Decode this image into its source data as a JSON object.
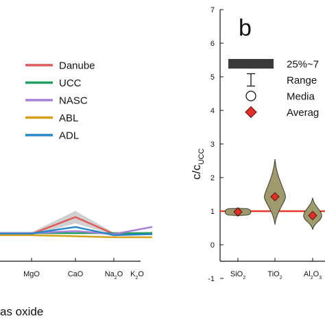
{
  "chart_data": [
    {
      "type": "line",
      "panel": "a",
      "categories": [
        "MgO",
        "CaO",
        "Na2O",
        "K2O"
      ],
      "category_labels": [
        {
          "base": "MgO",
          "sub": "",
          "tail": ""
        },
        {
          "base": "CaO",
          "sub": "",
          "tail": ""
        },
        {
          "base": "Na",
          "sub": "2",
          "tail": "O"
        },
        {
          "base": "K",
          "sub": "2",
          "tail": "O"
        }
      ],
      "xlabel": "as oxide",
      "ylabel": "",
      "legend_position": "upper-right",
      "series": [
        {
          "name": "Danube",
          "color": "#e05a5a",
          "values": [
            0.96,
            1.78,
            0.96,
            1.0
          ],
          "band": [
            0.08,
            0.3,
            0.06,
            0.06
          ]
        },
        {
          "name": "UCC",
          "color": "#1f9c5f",
          "values": [
            1.0,
            1.0,
            1.0,
            1.0
          ]
        },
        {
          "name": "NASC",
          "color": "#a77fd6",
          "values": [
            1.0,
            1.1,
            0.95,
            1.3
          ]
        },
        {
          "name": "ABL",
          "color": "#d4a017",
          "values": [
            0.9,
            0.85,
            0.8,
            0.8
          ]
        },
        {
          "name": "ADL",
          "color": "#2a86c8",
          "values": [
            0.98,
            1.3,
            0.9,
            0.95
          ]
        }
      ]
    },
    {
      "type": "violin",
      "panel": "b",
      "panel_letter": "b",
      "ylabel": {
        "base": "c/c",
        "sub": "UCC"
      },
      "ylim": [
        -1,
        7
      ],
      "yticks": [
        -1,
        0,
        1,
        2,
        3,
        4,
        5,
        6,
        7
      ],
      "reference_line": {
        "value": 1,
        "color": "#e8382d"
      },
      "categories": [
        {
          "base": "SiO",
          "sub": "2",
          "tail": ""
        },
        {
          "base": "TiO",
          "sub": "2",
          "tail": ""
        },
        {
          "base": "Al",
          "sub": "2",
          "tail": "O",
          "sub2": "3"
        }
      ],
      "distributions": [
        {
          "category": "SiO2",
          "average": 0.98,
          "min": 0.85,
          "max": 1.1,
          "width": 0.85
        },
        {
          "category": "TiO2",
          "average": 1.43,
          "min": 0.6,
          "max": 2.55,
          "width": 0.7
        },
        {
          "category": "Al2O3",
          "average": 0.87,
          "min": 0.45,
          "max": 1.4,
          "width": 0.6
        }
      ],
      "violin_color": "#9e9a6e",
      "average_color": "#e0302a",
      "legend": [
        {
          "symbol": "box",
          "label": "25%~7"
        },
        {
          "symbol": "range",
          "label": "Range"
        },
        {
          "symbol": "circle",
          "label": "Media"
        },
        {
          "symbol": "diamond",
          "label": "Averag"
        }
      ]
    }
  ]
}
